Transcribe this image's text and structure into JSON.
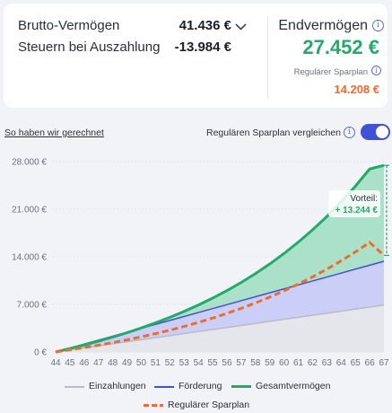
{
  "summary": {
    "gross_label": "Brutto-Vermögen",
    "gross_value": "41.436 €",
    "tax_label": "Steuern bei Auszahlung",
    "tax_value": "-13.984 €",
    "end_title": "Endvermögen",
    "end_value": "27.452 €",
    "regular_label": "Regulärer Sparplan",
    "regular_value": "14.208 €"
  },
  "controls": {
    "calc_link": "So haben wir gerechnet",
    "compare_label": "Regulären Sparplan vergleichen",
    "compare_enabled": true
  },
  "icons": {
    "info": "info-icon",
    "chevron": "chevron-down-icon"
  },
  "colors": {
    "accent_green": "#23a96b",
    "accent_orange": "#ef6c2a",
    "accent_blue": "#3f51d6",
    "gray_series": "#b9bcc6"
  },
  "chart_data": {
    "type": "area",
    "x": [
      44,
      45,
      46,
      47,
      48,
      49,
      50,
      51,
      52,
      53,
      54,
      55,
      56,
      57,
      58,
      59,
      60,
      61,
      62,
      63,
      64,
      65,
      66,
      67
    ],
    "ylim": [
      0,
      28000
    ],
    "yticks": [
      "0 €",
      "7.000 €",
      "14.000 €",
      "21.000 €",
      "28.000 €"
    ],
    "ytick_values": [
      0,
      7000,
      14000,
      21000,
      28000
    ],
    "series": [
      {
        "name": "Einzahlungen",
        "values": [
          0,
          300,
          600,
          900,
          1200,
          1500,
          1800,
          2100,
          2400,
          2700,
          3000,
          3300,
          3600,
          3900,
          4200,
          4500,
          4800,
          5100,
          5400,
          5700,
          6000,
          6300,
          6600,
          6900
        ]
      },
      {
        "name": "Förderung",
        "values": [
          0,
          580,
          1160,
          1740,
          2320,
          2900,
          3480,
          4060,
          4640,
          5220,
          5800,
          6380,
          6960,
          7540,
          8120,
          8700,
          9280,
          9860,
          10440,
          11020,
          11600,
          12180,
          12760,
          13340
        ]
      },
      {
        "name": "Gesamtvermögen",
        "values": [
          0,
          500,
          1020,
          1580,
          2180,
          2830,
          3530,
          4280,
          5090,
          5960,
          6900,
          7920,
          9020,
          10220,
          11520,
          12940,
          14480,
          16150,
          17960,
          19920,
          22060,
          24390,
          26910,
          27452
        ]
      },
      {
        "name": "Regulärer Sparplan",
        "values": [
          0,
          310,
          640,
          990,
          1370,
          1780,
          2220,
          2690,
          3200,
          3750,
          4340,
          4980,
          5670,
          6410,
          7210,
          8070,
          8990,
          9980,
          11040,
          12180,
          13400,
          14710,
          16110,
          14208
        ]
      }
    ],
    "annotation": {
      "label": "Vorteil:",
      "value": "+ 13.244 €"
    },
    "legend": [
      "Einzahlungen",
      "Förderung",
      "Gesamtvermögen",
      "Regulärer Sparplan"
    ]
  }
}
